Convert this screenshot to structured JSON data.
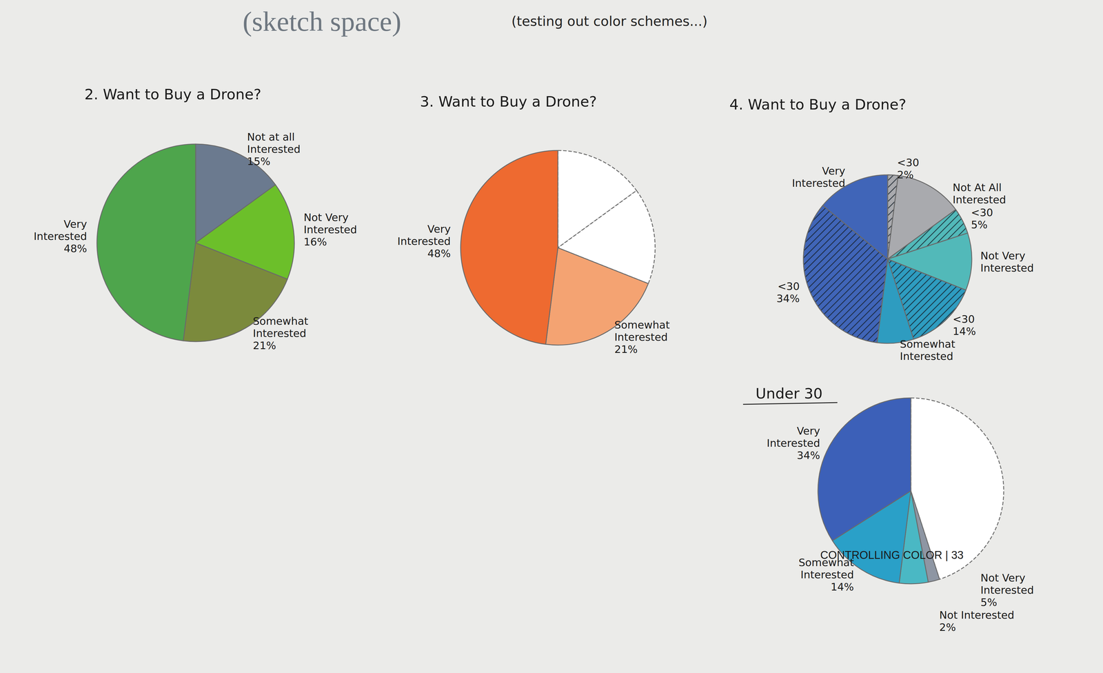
{
  "header": {
    "title": "(sketch space)",
    "note": "(testing out color schemes...)"
  },
  "page_footer": "CONTROLLING COLOR | 33",
  "chart_data": [
    {
      "type": "pie",
      "title": "2. Want to Buy a Drone?",
      "categories": [
        "Not at all Interested",
        "Not Very Interested",
        "Somewhat Interested",
        "Very Interested"
      ],
      "values": [
        15,
        16,
        21,
        48
      ],
      "value_labels": [
        "15%",
        "16%",
        "21%",
        "48%"
      ],
      "colors": [
        "#6b7a8f",
        "#6cbf2a",
        "#7b8a3c",
        "#4ea54c"
      ],
      "data_labels": true
    },
    {
      "type": "pie",
      "title": "3. Want to Buy a Drone?",
      "categories": [
        null,
        null,
        "Somewhat Interested",
        "Very Interested"
      ],
      "values": [
        15,
        16,
        21,
        48
      ],
      "value_labels": [
        null,
        null,
        "21%",
        "48%"
      ],
      "colors": [
        "#ffffff",
        "#ffffff",
        "#f4a372",
        "#ee6a30"
      ],
      "data_labels": true
    },
    {
      "type": "pie",
      "title": "4. Want to Buy a Drone?",
      "categories": [
        "Not At All Interested",
        "Not Very Interested",
        "Somewhat Interested",
        "Very Interested"
      ],
      "colors": [
        "#a9aaae",
        "#52b9b9",
        "#2e9cc0",
        "#4065b8"
      ],
      "series": [
        {
          "name": "<30",
          "values": [
            2,
            5,
            14,
            34
          ],
          "value_labels": [
            "2%",
            "5%",
            "14%",
            "34%"
          ],
          "marker": "hatch"
        },
        {
          "values": [
            13,
            11,
            7,
            14
          ]
        }
      ],
      "data_labels": true
    },
    {
      "type": "pie",
      "title": "Under 30",
      "categories": [
        null,
        "Not Interested",
        "Not Very Interested",
        "Somewhat Interested",
        "Very Interested"
      ],
      "values": [
        45,
        2,
        5,
        14,
        34
      ],
      "value_labels": [
        null,
        "2%",
        "5%",
        "14%",
        "34%"
      ],
      "colors": [
        "#ffffff",
        "#8e96a3",
        "#4ab8c4",
        "#2aa0c8",
        "#3c60b8"
      ],
      "data_labels": true
    }
  ]
}
